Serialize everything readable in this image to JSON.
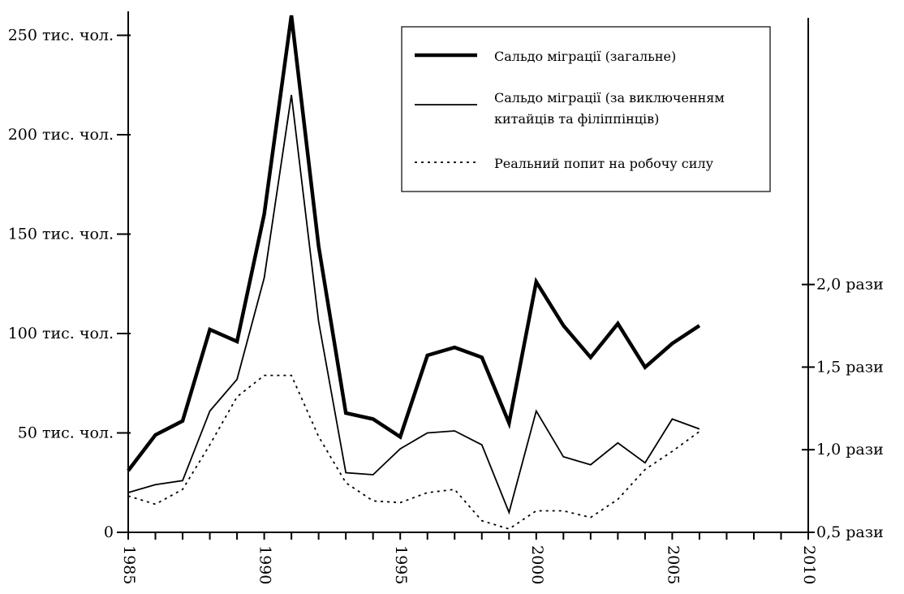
{
  "chart_data": {
    "type": "line",
    "x_axis": {
      "range": [
        1985,
        2010
      ],
      "ticks": [
        1985,
        1990,
        1995,
        2000,
        2005,
        2010
      ],
      "tick_labels": [
        "1985",
        "1990",
        "1995",
        "2000",
        "2005",
        "2010"
      ]
    },
    "y_left": {
      "range": [
        0,
        260
      ],
      "ticks": [
        0,
        50,
        100,
        150,
        200,
        250
      ],
      "tick_labels": [
        "0",
        "50 тис. чол.",
        "100 тис. чол.",
        "150 тис. чол.",
        "200 тис. чол.",
        "250 тис. чол."
      ]
    },
    "y_right": {
      "range": [
        0.5,
        2.0
      ],
      "ticks": [
        0.5,
        1.0,
        1.5,
        2.0
      ],
      "tick_labels": [
        "0,5 рази",
        "1,0 рази",
        "1,5 рази",
        "2,0 рази"
      ]
    },
    "series": [
      {
        "name": "Сальдо міграції (загальне)",
        "axis": "left",
        "style": "thick",
        "x": [
          1985,
          1986,
          1987,
          1988,
          1989,
          1990,
          1991,
          1992,
          1993,
          1994,
          1995,
          1996,
          1997,
          1998,
          1999,
          2000,
          2001,
          2002,
          2003,
          2004,
          2005,
          2006
        ],
        "y": [
          31,
          49,
          56,
          102,
          96,
          160,
          260,
          144,
          60,
          57,
          48,
          89,
          93,
          88,
          55,
          126,
          104,
          88,
          105,
          83,
          95,
          104
        ]
      },
      {
        "name": "Сальдо міграції (за виключенням китайців та філіппінців)",
        "axis": "left",
        "style": "thin",
        "x": [
          1985,
          1986,
          1987,
          1988,
          1989,
          1990,
          1991,
          1992,
          1993,
          1994,
          1995,
          1996,
          1997,
          1998,
          1999,
          2000,
          2001,
          2002,
          2003,
          2004,
          2005,
          2006
        ],
        "y": [
          20,
          24,
          26,
          61,
          77,
          128,
          220,
          106,
          30,
          29,
          42,
          50,
          51,
          44,
          10,
          61,
          38,
          34,
          45,
          35,
          57,
          52
        ]
      },
      {
        "name": "Реальний попит на робочу силу",
        "axis": "right",
        "style": "dotted",
        "x": [
          1985,
          1986,
          1987,
          1988,
          1989,
          1990,
          1991,
          1992,
          1993,
          1994,
          1995,
          1996,
          1997,
          1998,
          1999,
          2000,
          2001,
          2002,
          2003,
          2004,
          2005,
          2006
        ],
        "y": [
          0.72,
          0.67,
          0.76,
          1.03,
          1.32,
          1.45,
          1.45,
          1.08,
          0.8,
          0.69,
          0.68,
          0.74,
          0.76,
          0.57,
          0.52,
          0.63,
          0.63,
          0.59,
          0.7,
          0.88,
          0.99,
          1.11
        ]
      }
    ],
    "legend": {
      "position": "top-right",
      "entries": [
        {
          "lines": [
            "Сальдо міграції (загальне)"
          ],
          "style": "thick"
        },
        {
          "lines": [
            "Сальдо міграції (за виключенням",
            "китайців та філіппінців)"
          ],
          "style": "thin"
        },
        {
          "lines": [
            "Реальний попит на робочу силу"
          ],
          "style": "dotted"
        }
      ]
    },
    "colors": {
      "line": "#000000",
      "background": "#ffffff"
    }
  }
}
